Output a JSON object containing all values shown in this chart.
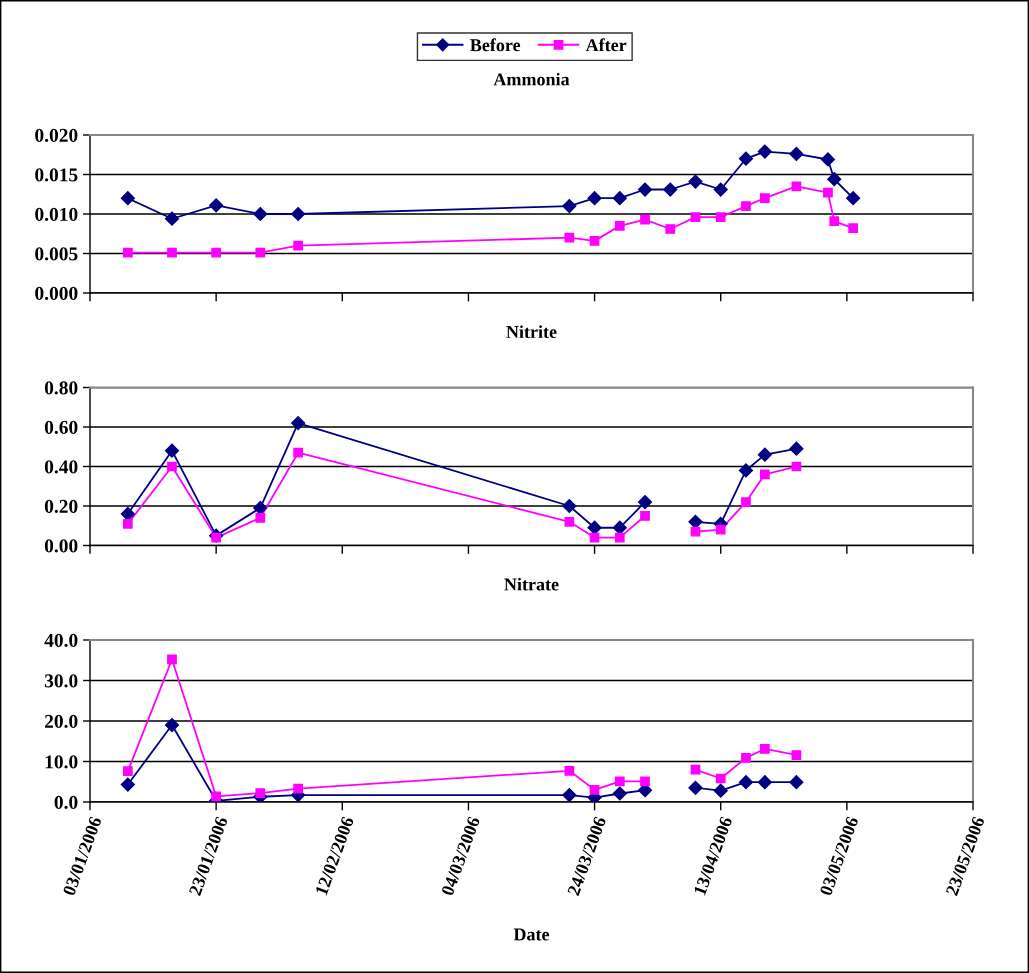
{
  "chart_data": [
    {
      "type": "line",
      "title": "Ammonia",
      "legend": "top",
      "line_style": "solid",
      "grid": "y",
      "tick_labels": "y",
      "x": [
        "2006-01-09",
        "2006-01-16",
        "2006-01-23",
        "2006-01-30",
        "2006-02-05",
        "2006-03-20",
        "2006-03-24",
        "2006-03-28",
        "2006-04-01",
        "2006-04-05",
        "2006-04-09",
        "2006-04-13",
        "2006-04-17",
        "2006-04-20",
        "2006-04-25",
        "2006-04-30",
        "2006-05-01",
        "2006-05-04"
      ],
      "xlim": [
        "2006-01-03",
        "2006-05-23"
      ],
      "xticks": [
        {
          "value": "2006-01-03",
          "label": null
        },
        {
          "value": "2006-01-23",
          "label": null
        },
        {
          "value": "2006-02-12",
          "label": null
        },
        {
          "value": "2006-03-04",
          "label": null
        },
        {
          "value": "2006-03-24",
          "label": null
        },
        {
          "value": "2006-04-13",
          "label": null
        },
        {
          "value": "2006-05-03",
          "label": null
        },
        {
          "value": "2006-05-23",
          "label": null
        }
      ],
      "ylim": [
        0,
        0.02
      ],
      "yticks": [
        {
          "value": 0,
          "label": "0.000"
        },
        {
          "value": 0.005,
          "label": "0.005"
        },
        {
          "value": 0.01,
          "label": "0.010"
        },
        {
          "value": 0.015,
          "label": "0.015"
        },
        {
          "value": 0.02,
          "label": "0.020"
        }
      ],
      "series": [
        {
          "name": "Before",
          "color": "#000080",
          "marker": "diamond",
          "values": [
            0.012,
            0.0094,
            0.0111,
            0.01,
            0.01,
            0.011,
            0.012,
            0.012,
            0.0131,
            0.0131,
            0.0141,
            0.0131,
            0.017,
            0.0179,
            0.0176,
            0.0169,
            0.0144,
            0.012
          ]
        },
        {
          "name": "After",
          "color": "#ff00ff",
          "marker": "square",
          "values": [
            0.0051,
            0.0051,
            0.0051,
            0.0051,
            0.006,
            0.007,
            0.0066,
            0.0085,
            0.0093,
            0.0081,
            0.0096,
            0.0096,
            0.011,
            0.012,
            0.0135,
            0.0127,
            0.0091,
            0.0082
          ]
        }
      ]
    },
    {
      "type": "line",
      "title": "Nitrite",
      "line_style": "solid",
      "grid": "y",
      "tick_labels": "y",
      "x": [
        "2006-01-09",
        "2006-01-16",
        "2006-01-23",
        "2006-01-30",
        "2006-02-05",
        "2006-03-20",
        "2006-03-24",
        "2006-03-28",
        "2006-04-01",
        "2006-04-05",
        "2006-04-09",
        "2006-04-13",
        "2006-04-17",
        "2006-04-20",
        "2006-04-25"
      ],
      "xlim": [
        "2006-01-03",
        "2006-05-23"
      ],
      "xticks": [
        {
          "value": "2006-01-03",
          "label": null
        },
        {
          "value": "2006-01-23",
          "label": null
        },
        {
          "value": "2006-02-12",
          "label": null
        },
        {
          "value": "2006-03-04",
          "label": null
        },
        {
          "value": "2006-03-24",
          "label": null
        },
        {
          "value": "2006-04-13",
          "label": null
        },
        {
          "value": "2006-05-03",
          "label": null
        },
        {
          "value": "2006-05-23",
          "label": null
        }
      ],
      "ylim": [
        0,
        0.8
      ],
      "yticks": [
        {
          "value": 0,
          "label": "0.00"
        },
        {
          "value": 0.2,
          "label": "0.20"
        },
        {
          "value": 0.4,
          "label": "0.40"
        },
        {
          "value": 0.6,
          "label": "0.60"
        },
        {
          "value": 0.8,
          "label": "0.80"
        }
      ],
      "series": [
        {
          "color": "#000080",
          "marker": "diamond",
          "values": [
            0.16,
            0.48,
            0.05,
            0.19,
            0.62,
            0.2,
            0.09,
            0.09,
            0.22,
            null,
            0.12,
            0.11,
            0.38,
            0.46,
            0.49
          ]
        },
        {
          "color": "#ff00ff",
          "marker": "square",
          "values": [
            0.11,
            0.4,
            0.04,
            0.14,
            0.47,
            0.12,
            0.04,
            0.04,
            0.15,
            null,
            0.07,
            0.08,
            0.22,
            0.36,
            0.4
          ]
        }
      ]
    },
    {
      "type": "line",
      "title": "Nitrate",
      "xlabel": "Date",
      "line_style": "solid",
      "grid": "y",
      "x": [
        "2006-01-09",
        "2006-01-16",
        "2006-01-23",
        "2006-01-30",
        "2006-02-05",
        "2006-03-20",
        "2006-03-24",
        "2006-03-28",
        "2006-04-01",
        "2006-04-05",
        "2006-04-09",
        "2006-04-13",
        "2006-04-17",
        "2006-04-20",
        "2006-04-25"
      ],
      "xlim": [
        "2006-01-03",
        "2006-05-23"
      ],
      "xticks": [
        {
          "value": "2006-01-03",
          "label": "03/01/2006"
        },
        {
          "value": "2006-01-23",
          "label": "23/01/2006"
        },
        {
          "value": "2006-02-12",
          "label": "12/02/2006"
        },
        {
          "value": "2006-03-04",
          "label": "04/03/2006"
        },
        {
          "value": "2006-03-24",
          "label": "24/03/2006"
        },
        {
          "value": "2006-04-13",
          "label": "13/04/2006"
        },
        {
          "value": "2006-05-03",
          "label": "03/05/2006"
        },
        {
          "value": "2006-05-23",
          "label": "23/05/2006"
        }
      ],
      "ylim": [
        0,
        40
      ],
      "yticks": [
        {
          "value": 0,
          "label": "0.0"
        },
        {
          "value": 10,
          "label": "10.0"
        },
        {
          "value": 20,
          "label": "20.0"
        },
        {
          "value": 30,
          "label": "30.0"
        },
        {
          "value": 40,
          "label": "40.0"
        }
      ],
      "series": [
        {
          "color": "#000080",
          "marker": "diamond",
          "values": [
            4.3,
            19.0,
            0.3,
            1.3,
            1.7,
            1.7,
            1.1,
            2.1,
            2.9,
            null,
            3.5,
            2.8,
            4.9,
            4.9,
            4.9
          ]
        },
        {
          "color": "#ff00ff",
          "marker": "square",
          "values": [
            7.6,
            35.2,
            1.4,
            2.2,
            3.3,
            7.7,
            3.0,
            5.1,
            5.1,
            null,
            8.0,
            5.8,
            10.9,
            13.1,
            11.6
          ]
        }
      ]
    }
  ]
}
